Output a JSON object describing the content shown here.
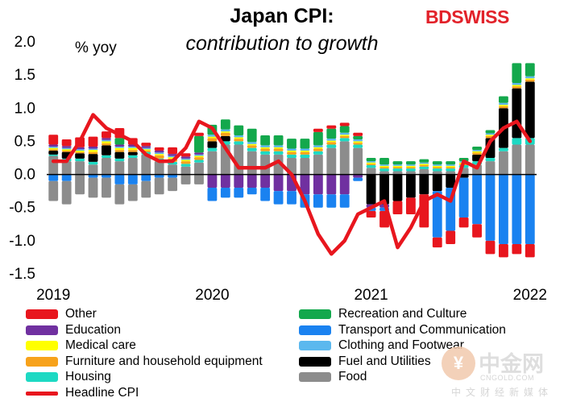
{
  "title": "Japan CPI:",
  "subtitle": "contribution to growth",
  "unit_label": "% yoy",
  "brand": {
    "part1": "BD",
    "part2": "SWISS"
  },
  "watermark": {
    "text_cn": "中金网",
    "text_en": "CNGOLD.COM",
    "sub_cn": "中文财经新媒体"
  },
  "chart_data": {
    "type": "bar",
    "stacked": true,
    "ylim": [
      -1.5,
      2.0
    ],
    "yticks": [
      "2.0",
      "1.5",
      "1.0",
      "0.5",
      "0.0",
      "-0.5",
      "-1.0",
      "-1.5"
    ],
    "ytick_values": [
      2.0,
      1.5,
      1.0,
      0.5,
      0.0,
      -0.5,
      -1.0,
      -1.5
    ],
    "year_labels": [
      {
        "label": "2019",
        "index": 0
      },
      {
        "label": "2020",
        "index": 12
      },
      {
        "label": "2021",
        "index": 24
      },
      {
        "label": "2022",
        "index": 36
      }
    ],
    "months": 37,
    "series": [
      {
        "name": "Food",
        "color": "#8c8c8c",
        "values": [
          0.28,
          0.2,
          0.2,
          0.15,
          0.25,
          0.2,
          0.25,
          0.3,
          0.2,
          0.15,
          0.12,
          0.18,
          0.35,
          0.45,
          0.45,
          0.35,
          0.3,
          0.3,
          0.25,
          0.25,
          0.3,
          0.4,
          0.5,
          0.4,
          0.1,
          0.05,
          0.05,
          0.05,
          0.08,
          0.05,
          0.05,
          0.1,
          0.15,
          0.2,
          0.35,
          0.45,
          0.45
        ]
      },
      {
        "name": "Housing",
        "color": "#1dd9c3",
        "values": [
          0.02,
          0.04,
          0.04,
          0.04,
          0.04,
          0.04,
          0.04,
          0.04,
          0.04,
          0.04,
          0.04,
          0.04,
          0.05,
          0.05,
          0.05,
          0.05,
          0.05,
          0.05,
          0.05,
          0.05,
          0.05,
          0.05,
          0.05,
          0.05,
          0.04,
          0.04,
          0.04,
          0.04,
          0.04,
          0.04,
          0.04,
          0.04,
          0.05,
          0.05,
          0.05,
          0.1,
          0.1
        ]
      },
      {
        "name": "Fuel and Utilities",
        "color": "#000000",
        "values": [
          0.06,
          0.1,
          0.08,
          0.12,
          0.15,
          0.1,
          0.05,
          0.0,
          0.0,
          0.0,
          0.0,
          0.0,
          0.1,
          0.08,
          0.0,
          0.0,
          0.0,
          0.0,
          0.0,
          0.0,
          0.0,
          0.0,
          0.0,
          0.0,
          -0.45,
          -0.45,
          -0.4,
          -0.35,
          -0.3,
          -0.25,
          -0.2,
          -0.05,
          0.1,
          0.3,
          0.6,
          0.75,
          0.85
        ]
      },
      {
        "name": "Furniture and household equipment",
        "color": "#f7a21b",
        "values": [
          0.02,
          0.02,
          0.02,
          0.03,
          0.03,
          0.03,
          0.03,
          0.02,
          0.05,
          0.05,
          0.04,
          0.04,
          0.05,
          0.05,
          0.04,
          0.04,
          0.04,
          0.04,
          0.04,
          0.04,
          0.04,
          0.04,
          0.03,
          0.03,
          0.02,
          0.02,
          0.02,
          0.02,
          0.02,
          0.02,
          0.02,
          0.02,
          0.03,
          0.03,
          0.03,
          0.03,
          0.03
        ]
      },
      {
        "name": "Medical care",
        "color": "#ffff00",
        "values": [
          0.02,
          0.02,
          0.02,
          0.03,
          0.03,
          0.03,
          0.03,
          0.02,
          0.02,
          0.02,
          0.02,
          0.02,
          0.02,
          0.02,
          0.02,
          0.02,
          0.02,
          0.02,
          0.02,
          0.02,
          0.02,
          0.02,
          0.02,
          0.02,
          0.02,
          0.02,
          0.02,
          0.02,
          0.02,
          0.02,
          0.02,
          0.02,
          0.02,
          0.02,
          0.02,
          0.02,
          0.02
        ]
      },
      {
        "name": "Clothing and Footwear",
        "color": "#5bb8ee",
        "values": [
          0.02,
          0.02,
          0.02,
          0.02,
          0.02,
          0.02,
          0.02,
          0.02,
          0.02,
          0.02,
          0.02,
          0.02,
          0.03,
          0.03,
          0.03,
          0.03,
          0.03,
          0.03,
          0.03,
          0.03,
          0.03,
          0.03,
          0.03,
          0.03,
          0.02,
          0.02,
          0.02,
          0.02,
          0.02,
          0.02,
          0.02,
          0.02,
          0.02,
          0.02,
          0.03,
          0.03,
          0.03
        ]
      },
      {
        "name": "Education",
        "color": "#7030a0",
        "values": [
          0.03,
          0.03,
          0.03,
          0.03,
          0.03,
          0.03,
          0.03,
          0.03,
          0.03,
          0.03,
          0.03,
          0.03,
          -0.2,
          -0.2,
          -0.2,
          -0.2,
          -0.2,
          -0.25,
          -0.25,
          -0.3,
          -0.3,
          -0.3,
          -0.3,
          -0.05,
          -0.05,
          -0.05,
          0.0,
          0.0,
          0.0,
          0.0,
          0.0,
          0.0,
          0.0,
          0.0,
          0.0,
          0.0,
          0.0
        ]
      },
      {
        "name": "Transport and Communication",
        "color": "#1a82f0",
        "values": [
          -0.1,
          -0.1,
          0.0,
          -0.05,
          -0.05,
          -0.15,
          -0.15,
          -0.1,
          -0.05,
          -0.05,
          0.0,
          0.0,
          -0.2,
          -0.15,
          -0.15,
          -0.1,
          -0.2,
          -0.2,
          -0.2,
          -0.2,
          -0.2,
          -0.2,
          -0.2,
          -0.05,
          -0.05,
          -0.05,
          0.0,
          0.0,
          0.0,
          -0.7,
          -0.65,
          -0.6,
          -0.75,
          -1.0,
          -1.05,
          -1.05,
          -1.05
        ]
      },
      {
        "name": "Recreation and Culture",
        "color": "#13a84c",
        "values": [
          0.0,
          0.0,
          0.0,
          0.0,
          0.0,
          0.1,
          0.0,
          0.0,
          0.0,
          0.0,
          0.0,
          0.25,
          0.15,
          0.15,
          0.15,
          0.2,
          0.15,
          0.15,
          0.15,
          0.15,
          0.2,
          0.15,
          0.1,
          0.05,
          0.05,
          0.1,
          0.05,
          0.05,
          0.05,
          0.05,
          0.05,
          0.05,
          0.05,
          0.05,
          0.1,
          0.3,
          0.2
        ]
      },
      {
        "name": "Other",
        "color": "#e8161e",
        "values": [
          0.15,
          0.1,
          0.15,
          0.15,
          0.1,
          0.15,
          0.1,
          0.05,
          0.05,
          0.1,
          0.05,
          0.05,
          0.0,
          0.0,
          0.0,
          0.0,
          0.0,
          0.0,
          0.0,
          0.0,
          0.05,
          0.05,
          0.05,
          0.05,
          -0.1,
          -0.25,
          -0.2,
          -0.25,
          -0.5,
          -0.15,
          -0.2,
          -0.15,
          -0.2,
          -0.2,
          -0.2,
          -0.15,
          -0.2
        ]
      }
    ],
    "neg_extras": [
      [
        -0.3,
        -0.35,
        -0.3,
        -0.3,
        -0.3,
        -0.3,
        -0.25,
        -0.25,
        -0.25,
        -0.2,
        -0.15,
        -0.15,
        0.0,
        0.0,
        0.0,
        0.0,
        0.0,
        0.0,
        0.0,
        0.0,
        0.0,
        0.0,
        0.0,
        0.0,
        0.0,
        0.0,
        0.0,
        0.0,
        0.0,
        0.0,
        0.0,
        0.0,
        0.0,
        0.0,
        0.0,
        0.0,
        0.0
      ]
    ],
    "headline": {
      "name": "Headline CPI",
      "color": "#e8161e",
      "values": [
        0.2,
        0.2,
        0.5,
        0.9,
        0.7,
        0.6,
        0.5,
        0.3,
        0.2,
        0.2,
        0.4,
        0.8,
        0.7,
        0.4,
        0.1,
        0.1,
        0.1,
        0.2,
        0.0,
        -0.4,
        -0.9,
        -1.2,
        -1.0,
        -0.6,
        -0.5,
        -0.4,
        -1.1,
        -0.8,
        -0.4,
        -0.3,
        -0.4,
        0.2,
        0.1,
        0.5,
        0.7,
        0.8,
        0.5
      ]
    }
  },
  "legend": [
    {
      "label": "Other",
      "color": "#e8161e"
    },
    {
      "label": "Recreation and Culture",
      "color": "#13a84c"
    },
    {
      "label": "Education",
      "color": "#7030a0"
    },
    {
      "label": "Transport and Communication",
      "color": "#1a82f0"
    },
    {
      "label": "Medical care",
      "color": "#ffff00"
    },
    {
      "label": "Clothing and Footwear",
      "color": "#5bb8ee"
    },
    {
      "label": "Furniture and household equipment",
      "color": "#f7a21b"
    },
    {
      "label": "Fuel and Utilities",
      "color": "#000000"
    },
    {
      "label": "Housing",
      "color": "#1dd9c3"
    },
    {
      "label": "Food",
      "color": "#8c8c8c"
    },
    {
      "label": "Headline CPI",
      "color": "#e8161e",
      "line": true
    }
  ]
}
